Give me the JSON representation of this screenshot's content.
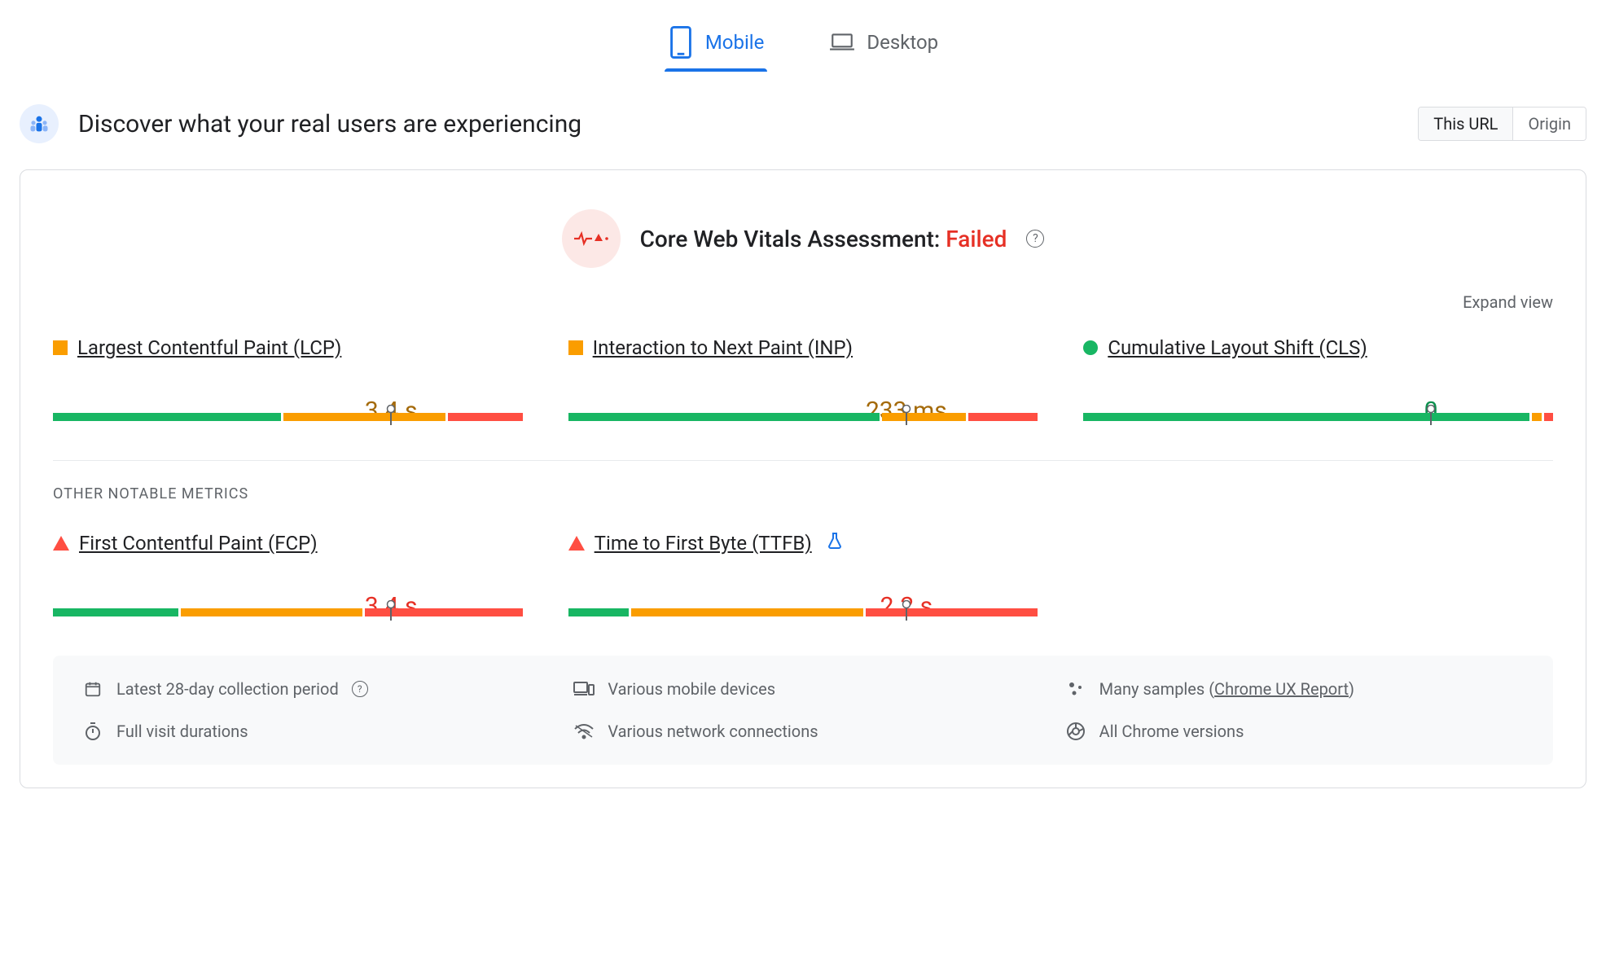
{
  "tabs": {
    "mobile": "Mobile",
    "desktop": "Desktop",
    "active": "mobile"
  },
  "header": {
    "title": "Discover what your real users are experiencing",
    "toggle": {
      "thisUrl": "This URL",
      "origin": "Origin",
      "active": "thisUrl"
    }
  },
  "assessment": {
    "label": "Core Web Vitals Assessment: ",
    "status": "Failed",
    "expand": "Expand view"
  },
  "colors": {
    "good": "#18b663",
    "warn": "#fa9d00",
    "bad": "#ff4e42",
    "warn_text": "#a46a0a",
    "bad_text": "#e63025",
    "good_text": "#0d904f"
  },
  "coreMetrics": [
    {
      "id": "lcp",
      "name": "Largest Contentful Paint (LCP)",
      "status": "warn",
      "shape": "square-warn",
      "value": "3.4 s",
      "value_class": "warn",
      "segments": {
        "good": 49,
        "warn": 35,
        "bad": 16
      },
      "marker_pct": 72,
      "value_pos_pct": 72
    },
    {
      "id": "inp",
      "name": "Interaction to Next Paint (INP)",
      "status": "warn",
      "shape": "square-warn",
      "value": "233 ms",
      "value_class": "warn",
      "segments": {
        "good": 67,
        "warn": 18,
        "bad": 15
      },
      "marker_pct": 72,
      "value_pos_pct": 72
    },
    {
      "id": "cls",
      "name": "Cumulative Layout Shift (CLS)",
      "status": "good",
      "shape": "circle-good",
      "value": "0",
      "value_class": "good",
      "segments": {
        "good": 96,
        "warn": 2,
        "bad": 2
      },
      "marker_pct": 74,
      "value_pos_pct": 74
    }
  ],
  "otherLabel": "OTHER NOTABLE METRICS",
  "otherMetrics": [
    {
      "id": "fcp",
      "name": "First Contentful Paint (FCP)",
      "status": "bad",
      "shape": "triangle-bad",
      "value": "3.4 s",
      "value_class": "bad",
      "segments": {
        "good": 27,
        "warn": 39,
        "bad": 34
      },
      "marker_pct": 72,
      "value_pos_pct": 72
    },
    {
      "id": "ttfb",
      "name": "Time to First Byte (TTFB)",
      "status": "bad",
      "shape": "triangle-bad",
      "value": "2.2 s",
      "value_class": "bad",
      "segments": {
        "good": 13,
        "warn": 50,
        "bad": 37
      },
      "marker_pct": 72,
      "value_pos_pct": 72,
      "experimental": true
    }
  ],
  "info": {
    "period": "Latest 28-day collection period",
    "devices": "Various mobile devices",
    "samples_prefix": "Many samples (",
    "samples_link": "Chrome UX Report",
    "samples_suffix": ")",
    "durations": "Full visit durations",
    "network": "Various network connections",
    "versions": "All Chrome versions"
  }
}
